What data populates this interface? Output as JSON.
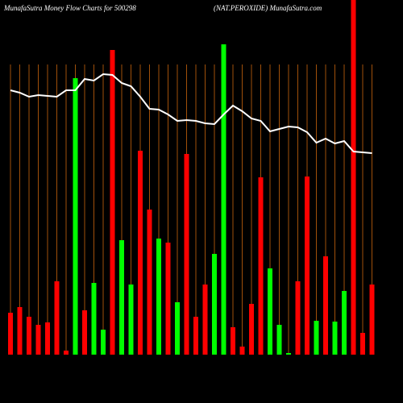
{
  "chart_data": {
    "type": "bar",
    "title": "MunafaSutra  Money Flow  Charts for 500298",
    "subtitle": "(NAT.PEROXIDE) MunafaSutra.com",
    "ylim": [
      0,
      440
    ],
    "y2lim": [
      0,
      440
    ],
    "series": [
      {
        "name": "Money Flow",
        "colors": [
          "red",
          "red",
          "red",
          "red",
          "red",
          "red",
          "red",
          "lime",
          "red",
          "lime",
          "lime",
          "red",
          "lime",
          "lime",
          "red",
          "red",
          "lime",
          "red",
          "lime",
          "red",
          "red",
          "red",
          "lime",
          "lime",
          "red",
          "red",
          "red",
          "red",
          "lime",
          "lime",
          "lime",
          "red",
          "red",
          "lime",
          "red",
          "lime",
          "lime",
          "red",
          "red",
          "red"
        ],
        "values": [
          52,
          59,
          47,
          37,
          40,
          91,
          5,
          343,
          55,
          89,
          31,
          378,
          142,
          87,
          253,
          180,
          144,
          139,
          65,
          249,
          47,
          87,
          125,
          385,
          34,
          10,
          63,
          220,
          107,
          37,
          2,
          91,
          221,
          42,
          122,
          41,
          79,
          440,
          27,
          87
        ]
      },
      {
        "name": "Price",
        "color": "#ffffff",
        "axis": "y2",
        "values": [
          328,
          325,
          320,
          322,
          321,
          320,
          328,
          328,
          342,
          340,
          348,
          347,
          337,
          333,
          320,
          305,
          304,
          298,
          290,
          291,
          290,
          287,
          286,
          298,
          309,
          302,
          293,
          290,
          277,
          280,
          283,
          282,
          276,
          263,
          268,
          262,
          265,
          252,
          251,
          250
        ]
      }
    ]
  }
}
